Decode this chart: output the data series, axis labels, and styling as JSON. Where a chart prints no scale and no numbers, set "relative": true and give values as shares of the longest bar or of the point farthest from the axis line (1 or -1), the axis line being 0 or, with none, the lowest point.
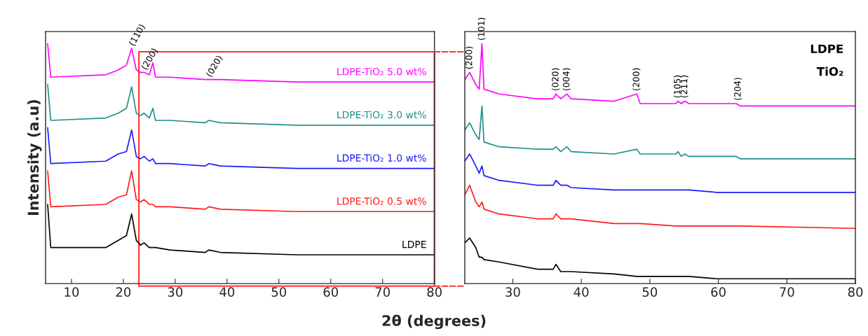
{
  "chart_data": [
    {
      "type": "line",
      "relative": true,
      "xlabel": "2θ (degrees)",
      "ylabel": "Intensity (a.u)",
      "xlim": [
        5,
        80
      ],
      "xticks": [
        10,
        20,
        30,
        40,
        50,
        60,
        70,
        80
      ],
      "grid": false,
      "legend": false,
      "x": [
        5.4,
        6,
        16.6,
        19,
        20.6,
        21.6,
        22.5,
        23.3,
        24,
        25,
        25.7,
        26.2,
        29,
        35.8,
        36.5,
        38.7,
        53.5,
        80
      ],
      "series": [
        {
          "name": "LDPE",
          "color": "#000000",
          "values": [
            0.33,
            0.15,
            0.15,
            0.18,
            0.2,
            0.29,
            0.18,
            0.16,
            0.17,
            0.15,
            0.15,
            0.15,
            0.14,
            0.13,
            0.14,
            0.13,
            0.12,
            0.12
          ]
        },
        {
          "name": "LDPE-TiO₂ 0.5 wt%",
          "color": "#ff1a1a",
          "values": [
            0.47,
            0.32,
            0.33,
            0.36,
            0.37,
            0.47,
            0.35,
            0.34,
            0.35,
            0.33,
            0.33,
            0.32,
            0.32,
            0.31,
            0.32,
            0.31,
            0.3,
            0.3
          ]
        },
        {
          "name": "LDPE-TiO₂ 1.0 wt%",
          "color": "#1a1aff",
          "values": [
            0.65,
            0.5,
            0.51,
            0.54,
            0.55,
            0.64,
            0.53,
            0.52,
            0.53,
            0.51,
            0.52,
            0.5,
            0.5,
            0.49,
            0.5,
            0.49,
            0.48,
            0.48
          ]
        },
        {
          "name": "LDPE-TiO₂ 3.0 wt%",
          "color": "#1f8f8a",
          "values": [
            0.83,
            0.68,
            0.69,
            0.71,
            0.73,
            0.82,
            0.71,
            0.7,
            0.71,
            0.69,
            0.73,
            0.68,
            0.68,
            0.67,
            0.68,
            0.67,
            0.66,
            0.66
          ]
        },
        {
          "name": "LDPE-TiO₂ 5.0 wt%",
          "color": "#ff00ff",
          "values": [
            1.0,
            0.86,
            0.87,
            0.89,
            0.91,
            0.98,
            0.89,
            0.88,
            0.88,
            0.87,
            0.92,
            0.86,
            0.86,
            0.85,
            0.85,
            0.85,
            0.84,
            0.84
          ]
        }
      ],
      "annotations": [
        {
          "text": "(110)",
          "x": 21.6,
          "y": 0.98
        },
        {
          "text": "(200)",
          "x": 24,
          "y": 0.88
        },
        {
          "text": "(020)",
          "x": 36.5,
          "y": 0.85
        }
      ]
    },
    {
      "type": "line",
      "relative": true,
      "xlim": [
        23,
        80
      ],
      "xticks": [
        30,
        40,
        50,
        60,
        70,
        80
      ],
      "grid": false,
      "legend": false,
      "x": [
        23.0,
        23.7,
        24.6,
        25.1,
        25.5,
        25.8,
        28,
        33.6,
        35.9,
        36.3,
        37,
        37.9,
        38.5,
        44.8,
        48.1,
        48.6,
        53.8,
        54.1,
        54.6,
        55.1,
        55.7,
        59.8,
        62.6,
        63.2,
        80
      ],
      "series": [
        {
          "color": "#000000",
          "values": [
            0.17,
            0.19,
            0.15,
            0.11,
            0.11,
            0.1,
            0.09,
            0.06,
            0.06,
            0.08,
            0.05,
            0.05,
            0.05,
            0.04,
            0.03,
            0.03,
            0.03,
            0.03,
            0.03,
            0.03,
            0.03,
            0.02,
            0.02,
            0.02,
            0.02
          ]
        },
        {
          "color": "#ff1a1a",
          "values": [
            0.37,
            0.41,
            0.34,
            0.32,
            0.34,
            0.31,
            0.29,
            0.27,
            0.27,
            0.29,
            0.27,
            0.27,
            0.27,
            0.25,
            0.25,
            0.25,
            0.24,
            0.24,
            0.24,
            0.24,
            0.24,
            0.24,
            0.24,
            0.24,
            0.23
          ]
        },
        {
          "color": "#1a1aff",
          "values": [
            0.51,
            0.54,
            0.49,
            0.46,
            0.49,
            0.45,
            0.43,
            0.41,
            0.41,
            0.43,
            0.41,
            0.41,
            0.4,
            0.39,
            0.39,
            0.39,
            0.39,
            0.39,
            0.39,
            0.39,
            0.39,
            0.38,
            0.38,
            0.38,
            0.38
          ]
        },
        {
          "color": "#1f8f8a",
          "values": [
            0.64,
            0.67,
            0.62,
            0.6,
            0.74,
            0.59,
            0.57,
            0.56,
            0.56,
            0.57,
            0.55,
            0.57,
            0.55,
            0.54,
            0.56,
            0.54,
            0.54,
            0.55,
            0.53,
            0.54,
            0.53,
            0.53,
            0.53,
            0.52,
            0.52
          ]
        },
        {
          "color": "#ff00ff",
          "values": [
            0.85,
            0.88,
            0.83,
            0.81,
            1.0,
            0.81,
            0.79,
            0.77,
            0.77,
            0.79,
            0.77,
            0.79,
            0.77,
            0.76,
            0.79,
            0.75,
            0.75,
            0.76,
            0.75,
            0.76,
            0.75,
            0.75,
            0.75,
            0.74,
            0.74
          ]
        }
      ],
      "annotations": [
        "LDPE",
        "TiO₂",
        {
          "text": "(200)",
          "x": 23.7,
          "y": 0.88
        },
        {
          "text": "(101)",
          "x": 25.5,
          "y": 1.0
        },
        {
          "text": "(020)",
          "x": 36.3,
          "y": 0.79
        },
        {
          "text": "(004)",
          "x": 37.9,
          "y": 0.79
        },
        {
          "text": "(200)",
          "x": 48.1,
          "y": 0.79
        },
        {
          "text": "(105)",
          "x": 54.1,
          "y": 0.76
        },
        {
          "text": "(211)",
          "x": 55.1,
          "y": 0.76
        },
        {
          "text": "(204)",
          "x": 62.9,
          "y": 0.75
        }
      ]
    }
  ]
}
